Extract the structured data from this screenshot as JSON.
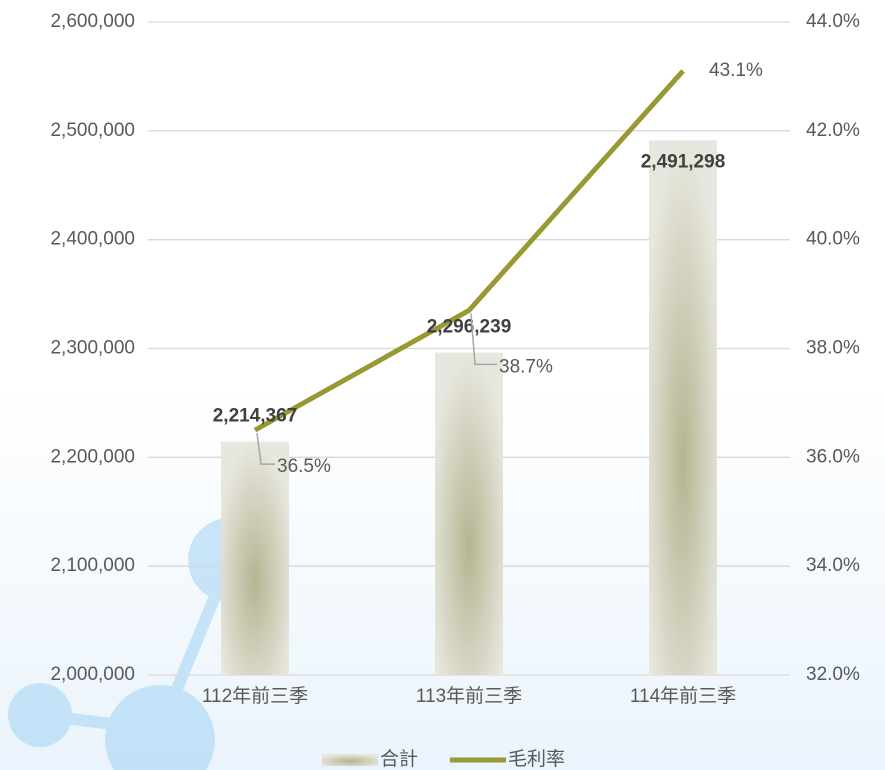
{
  "chart_data": {
    "type": "combo",
    "categories": [
      "112年前三季",
      "113年前三季",
      "114年前三季"
    ],
    "series": [
      {
        "name": "合計",
        "type": "bar",
        "color": "#b5b592",
        "values": [
          2214367,
          2296239,
          2491298
        ],
        "value_labels": [
          "2,214,367",
          "2,296,239",
          "2,491,298"
        ]
      },
      {
        "name": "毛利率",
        "type": "line",
        "axis": "y2",
        "color": "#999933",
        "values": [
          36.5,
          38.7,
          43.1
        ],
        "value_labels": [
          "36.5%",
          "38.7%",
          "43.1%"
        ]
      }
    ],
    "ylim": [
      2000000,
      2600000
    ],
    "yticks": [
      {
        "value": 2000000,
        "label": "2,000,000"
      },
      {
        "value": 2100000,
        "label": "2,100,000"
      },
      {
        "value": 2200000,
        "label": "2,200,000"
      },
      {
        "value": 2300000,
        "label": "2,300,000"
      },
      {
        "value": 2400000,
        "label": "2,400,000"
      },
      {
        "value": 2500000,
        "label": "2,500,000"
      },
      {
        "value": 2600000,
        "label": "2,600,000"
      }
    ],
    "y2lim": [
      32,
      44
    ],
    "y2ticks": [
      {
        "value": 32,
        "label": "32.0%"
      },
      {
        "value": 34,
        "label": "34.0%"
      },
      {
        "value": 36,
        "label": "36.0%"
      },
      {
        "value": 38,
        "label": "38.0%"
      },
      {
        "value": 40,
        "label": "40.0%"
      },
      {
        "value": 42,
        "label": "42.0%"
      },
      {
        "value": 44,
        "label": "44.0%"
      }
    ],
    "grid": true
  }
}
